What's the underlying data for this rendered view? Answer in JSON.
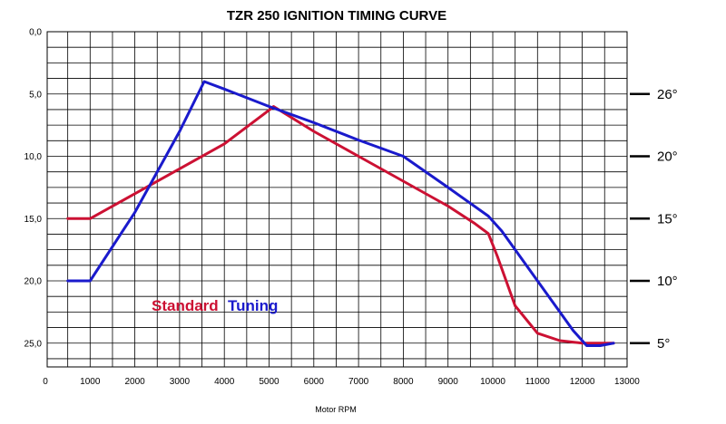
{
  "chart_data": {
    "type": "line",
    "title": "TZR 250 IGNITION TIMING  CURVE",
    "xlabel": "Motor RPM",
    "ylabel": "",
    "xlim": [
      0,
      13000
    ],
    "ylim": [
      0,
      27.5
    ],
    "y_inverted": true,
    "grid": true,
    "x_ticks": [
      "0",
      "1000",
      "2000",
      "3000",
      "4000",
      "5000",
      "6000",
      "7000",
      "8000",
      "9000",
      "10000",
      "11000",
      "12000",
      "13000"
    ],
    "y_ticks": [
      {
        "value": 0,
        "label": "0,0"
      },
      {
        "value": 5,
        "label": "5,0"
      },
      {
        "value": 10,
        "label": "10,0"
      },
      {
        "value": 15,
        "label": "15,0"
      },
      {
        "value": 20,
        "label": "20,0"
      },
      {
        "value": 25,
        "label": "25,0"
      }
    ],
    "right_axis_labels": [
      {
        "value": 5,
        "label": "26°"
      },
      {
        "value": 10,
        "label": "20°"
      },
      {
        "value": 15,
        "label": "15°"
      },
      {
        "value": 20,
        "label": "10°"
      },
      {
        "value": 25,
        "label": "5°"
      }
    ],
    "legend_position": "bottom-left",
    "series": [
      {
        "name": "Standard",
        "color": "#cc1133",
        "x": [
          500,
          1000,
          2000,
          3000,
          4000,
          5000,
          5100,
          6000,
          7000,
          8000,
          9000,
          9600,
          9900,
          10100,
          10500,
          11000,
          11500,
          12000,
          12700
        ],
        "y": [
          15,
          15,
          13,
          11,
          9,
          6.3,
          6,
          8,
          10,
          12,
          14,
          15.4,
          16.2,
          18,
          22,
          24.2,
          24.8,
          25,
          25
        ]
      },
      {
        "name": "Tuning",
        "color": "#1a1acc",
        "x": [
          500,
          1000,
          2000,
          3000,
          3550,
          4000,
          5000,
          6000,
          7000,
          8000,
          9000,
          9900,
          10200,
          11000,
          11800,
          12100,
          12400,
          12700
        ],
        "y": [
          20,
          20,
          14.5,
          8,
          4,
          4.6,
          6,
          7.3,
          8.7,
          10,
          12.5,
          14.8,
          16,
          20,
          24,
          25.2,
          25.2,
          25
        ]
      }
    ]
  }
}
